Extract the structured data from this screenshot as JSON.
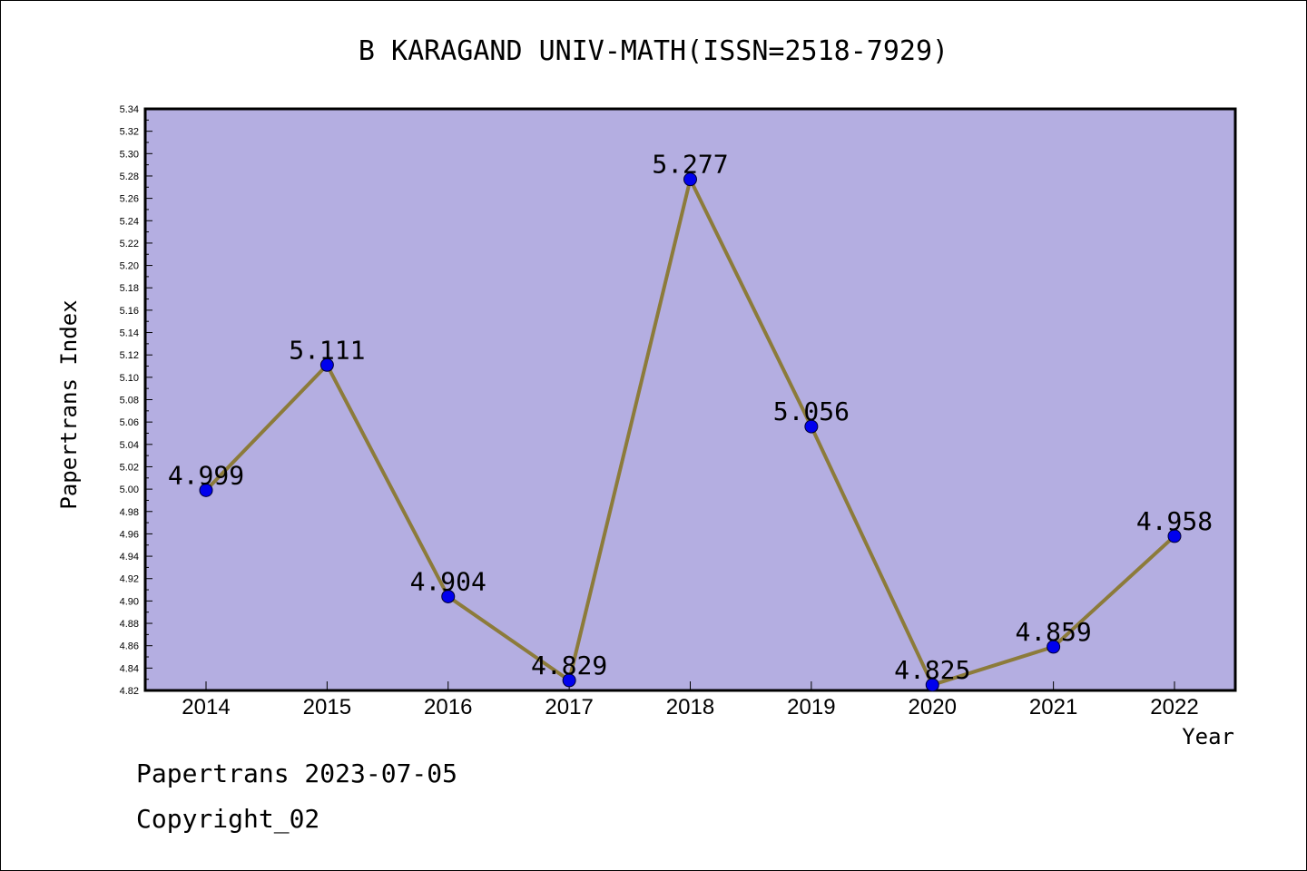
{
  "footer": {
    "line1": "Papertrans 2023-07-05",
    "line2": "Copyright_02"
  },
  "colors": {
    "plot_background": "#b4aee1",
    "line": "#8c7b3a",
    "marker": "#0000ee"
  },
  "chart_data": {
    "type": "line",
    "title": "B KARAGAND UNIV-MATH(ISSN=2518-7929)",
    "xlabel": "Year",
    "ylabel": "Papertrans Index",
    "categories": [
      "2014",
      "2015",
      "2016",
      "2017",
      "2018",
      "2019",
      "2020",
      "2021",
      "2022"
    ],
    "values": [
      4.999,
      5.111,
      4.904,
      4.829,
      5.277,
      5.056,
      4.825,
      4.859,
      4.958
    ],
    "value_labels": [
      "4.999",
      "5.111",
      "4.904",
      "4.829",
      "5.277",
      "5.056",
      "4.825",
      "4.859",
      "4.958"
    ],
    "ylim": [
      4.82,
      5.34
    ],
    "yticks": [
      "4.82",
      "4.84",
      "4.86",
      "4.88",
      "4.90",
      "4.92",
      "4.94",
      "4.96",
      "4.98",
      "5.00",
      "5.02",
      "5.04",
      "5.06",
      "5.08",
      "5.10",
      "5.12",
      "5.14",
      "5.16",
      "5.18",
      "5.20",
      "5.22",
      "5.24",
      "5.26",
      "5.28",
      "5.30",
      "5.32",
      "5.34"
    ],
    "grid": false,
    "legend": "none"
  }
}
